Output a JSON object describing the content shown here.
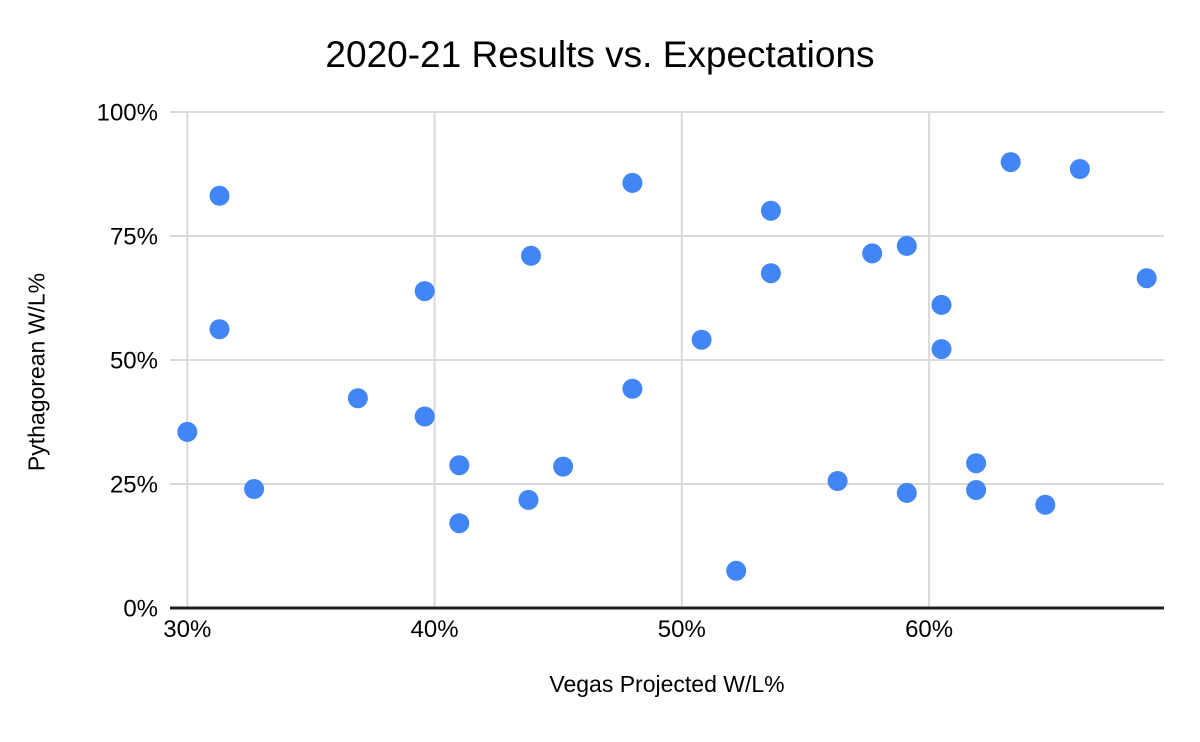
{
  "chart": {
    "title": "2020-21 Results vs. Expectations",
    "x_title": "Vegas Projected W/L%",
    "y_title": "Pythagorean W/L%"
  },
  "chart_data": {
    "type": "scatter",
    "title": "2020-21 Results vs. Expectations",
    "xlabel": "Vegas Projected W/L%",
    "ylabel": "Pythagorean W/L%",
    "xlim": [
      29.3,
      69.5
    ],
    "ylim": [
      0,
      100
    ],
    "x_ticks": [
      30,
      40,
      50,
      60
    ],
    "x_tick_labels": [
      "30%",
      "40%",
      "50%",
      "60%"
    ],
    "y_ticks": [
      0,
      25,
      50,
      75,
      100
    ],
    "y_tick_labels": [
      "0%",
      "25%",
      "50%",
      "75%",
      "100%"
    ],
    "grid": true,
    "legend": false,
    "point_color": "#4285F4",
    "gridline_color": "#d9d9d9",
    "axis_line_color": "#212121",
    "points": [
      {
        "x": 30.0,
        "y": 35.5
      },
      {
        "x": 31.3,
        "y": 83.1
      },
      {
        "x": 31.3,
        "y": 56.2
      },
      {
        "x": 32.7,
        "y": 24.0
      },
      {
        "x": 36.9,
        "y": 42.3
      },
      {
        "x": 39.6,
        "y": 63.9
      },
      {
        "x": 39.6,
        "y": 38.6
      },
      {
        "x": 41.0,
        "y": 28.8
      },
      {
        "x": 41.0,
        "y": 17.1
      },
      {
        "x": 43.8,
        "y": 21.8
      },
      {
        "x": 43.9,
        "y": 71.0
      },
      {
        "x": 45.2,
        "y": 28.5
      },
      {
        "x": 48.0,
        "y": 85.7
      },
      {
        "x": 48.0,
        "y": 44.2
      },
      {
        "x": 50.8,
        "y": 54.1
      },
      {
        "x": 52.2,
        "y": 7.5
      },
      {
        "x": 53.6,
        "y": 80.1
      },
      {
        "x": 53.6,
        "y": 67.5
      },
      {
        "x": 56.3,
        "y": 25.6
      },
      {
        "x": 57.7,
        "y": 71.5
      },
      {
        "x": 59.1,
        "y": 73.0
      },
      {
        "x": 59.1,
        "y": 23.2
      },
      {
        "x": 60.5,
        "y": 61.1
      },
      {
        "x": 60.5,
        "y": 52.2
      },
      {
        "x": 61.9,
        "y": 29.2
      },
      {
        "x": 61.9,
        "y": 23.8
      },
      {
        "x": 63.3,
        "y": 89.9
      },
      {
        "x": 64.7,
        "y": 20.8
      },
      {
        "x": 66.1,
        "y": 88.5
      },
      {
        "x": 68.8,
        "y": 66.5
      }
    ]
  }
}
